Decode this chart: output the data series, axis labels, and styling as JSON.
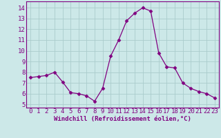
{
  "x": [
    0,
    1,
    2,
    3,
    4,
    5,
    6,
    7,
    8,
    9,
    10,
    11,
    12,
    13,
    14,
    15,
    16,
    17,
    18,
    19,
    20,
    21,
    22,
    23
  ],
  "y": [
    7.5,
    7.6,
    7.7,
    8.0,
    7.1,
    6.1,
    6.0,
    5.8,
    5.3,
    6.5,
    9.5,
    11.0,
    12.8,
    13.5,
    14.0,
    13.7,
    9.8,
    8.5,
    8.4,
    7.0,
    6.5,
    6.2,
    6.0,
    5.6
  ],
  "line_color": "#800080",
  "marker": "D",
  "marker_size": 2.5,
  "bg_color": "#cce8e8",
  "grid_color": "#aacccc",
  "xlabel": "Windchill (Refroidissement éolien,°C)",
  "yticks": [
    5,
    6,
    7,
    8,
    9,
    10,
    11,
    12,
    13,
    14
  ],
  "ylim": [
    4.7,
    14.6
  ],
  "xlim": [
    -0.5,
    23.5
  ],
  "tick_fontsize": 6.5,
  "xlabel_fontsize": 6.5
}
